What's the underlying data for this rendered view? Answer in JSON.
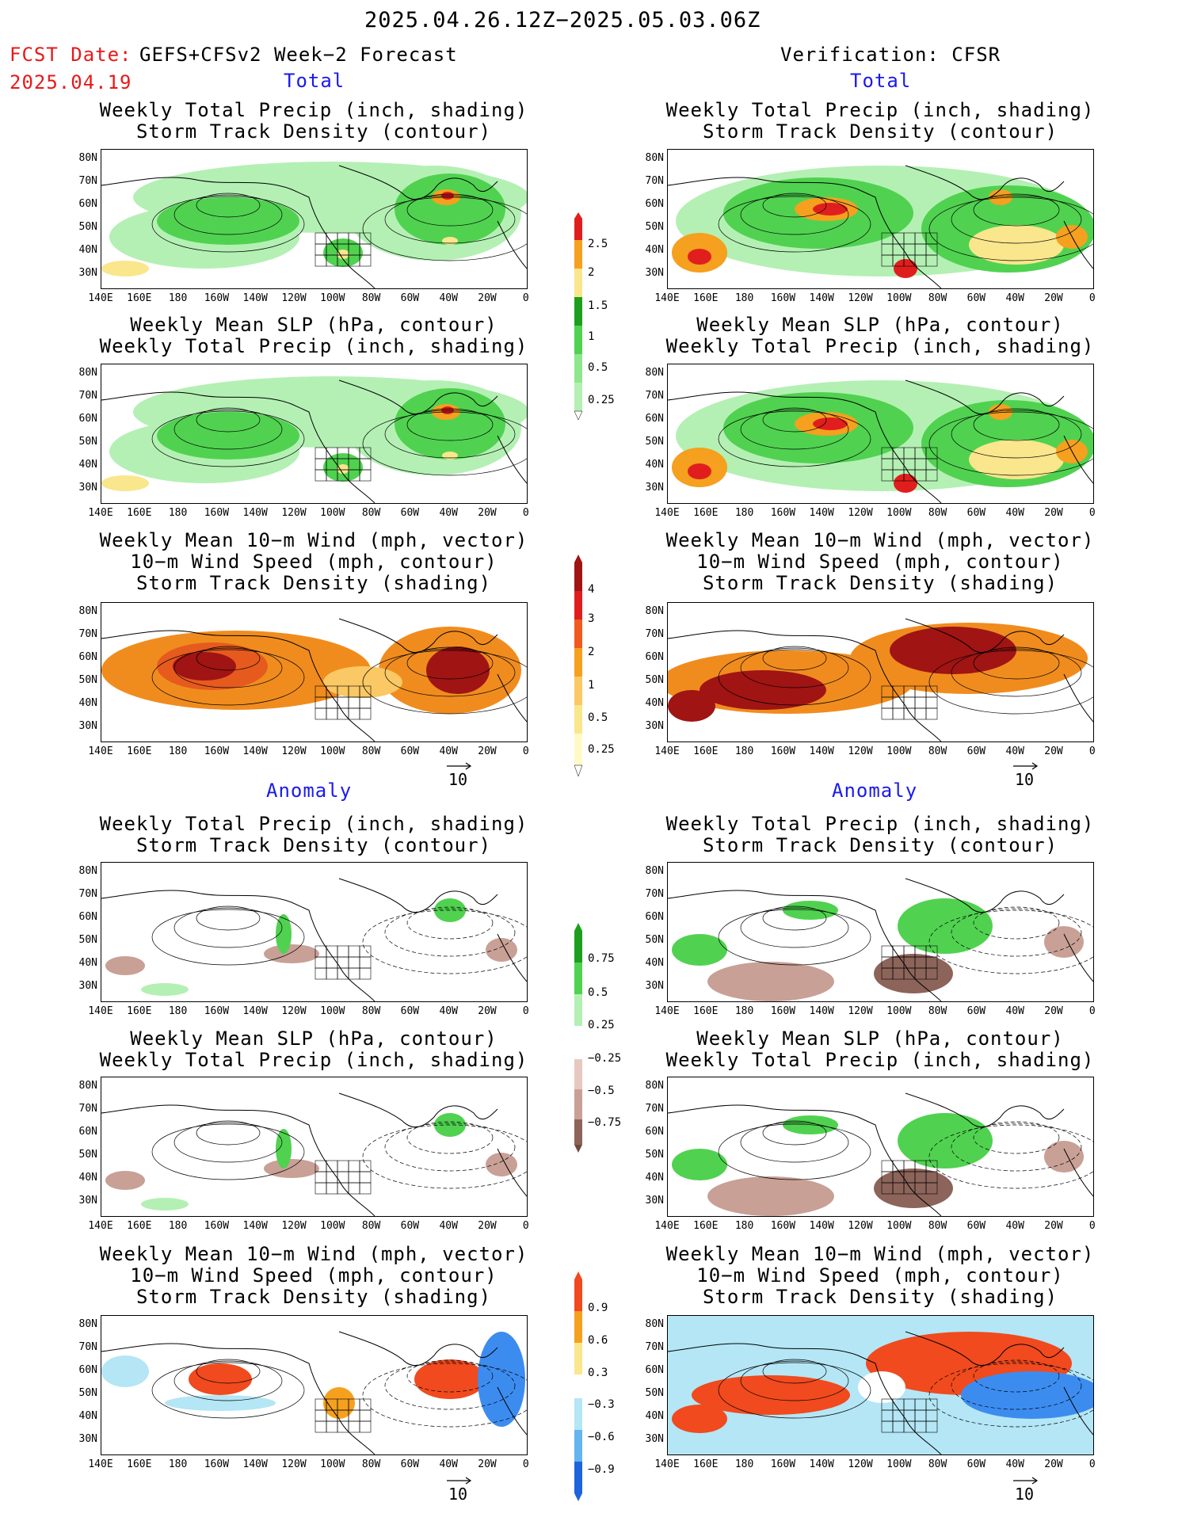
{
  "header": {
    "period": "2025.04.26.12Z−2025.05.03.06Z",
    "fcst_label": "FCST Date:",
    "fcst_desc": "GEFS+CFSv2 Week−2 Forecast",
    "fcst_date": "2025.04.19",
    "verification": "Verification: CFSR"
  },
  "sections": {
    "total": "Total",
    "anomaly": "Anomaly"
  },
  "panel_titles": {
    "precip_storm": [
      "Weekly Total Precip (inch, shading)",
      "Storm Track Density (contour)"
    ],
    "slp_precip": [
      "Weekly Mean SLP (hPa, contour)",
      "Weekly Total Precip (inch, shading)"
    ],
    "wind": [
      "Weekly Mean 10−m Wind (mph, vector)",
      "10−m Wind Speed (mph, contour)",
      "Storm Track Density (shading)"
    ]
  },
  "axes": {
    "lat_ticks": [
      "80N",
      "70N",
      "60N",
      "50N",
      "40N",
      "30N"
    ],
    "lon_ticks": [
      "140E",
      "160E",
      "180",
      "160W",
      "140W",
      "120W",
      "100W",
      "80W",
      "60W",
      "40W",
      "20W",
      "0"
    ]
  },
  "colorbars": {
    "total_precip": [
      "2.5",
      "2",
      "1.5",
      "1",
      "0.5",
      "0.25"
    ],
    "total_storm": [
      "4",
      "3",
      "2",
      "1",
      "0.5",
      "0.25"
    ],
    "anom_precip": [
      "0.75",
      "0.5",
      "0.25",
      "−0.25",
      "−0.5",
      "−0.75"
    ],
    "anom_storm": [
      "0.9",
      "0.6",
      "0.3",
      "−0.3",
      "−0.6",
      "−0.9"
    ]
  },
  "vector_ref": "10",
  "colors": {
    "precip_light": "#b4f0b4",
    "precip_mid": "#50d250",
    "precip_dark": "#1e9e1e",
    "precip_yellow": "#fae68c",
    "precip_orange": "#f5a01e",
    "precip_red": "#e11e1e",
    "storm_orange": "#f08c1e",
    "storm_dark": "#a01414",
    "anom_brown": "#c8a096",
    "anom_blue": "#3c8cf0"
  }
}
